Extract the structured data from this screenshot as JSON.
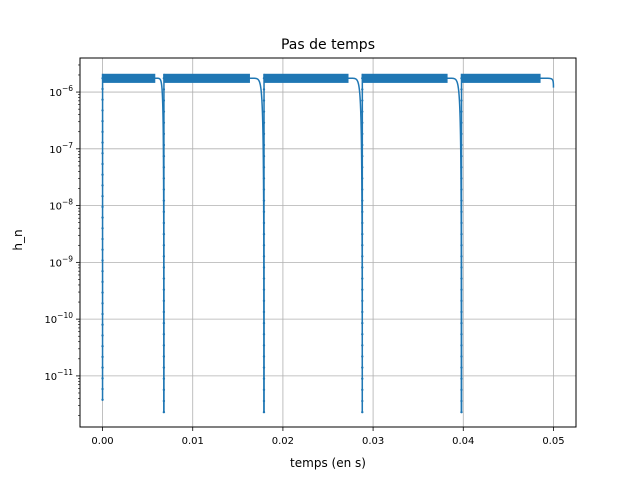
{
  "chart_data": {
    "type": "line",
    "title": "Pas de temps",
    "xlabel": "temps (en s)",
    "ylabel": "h_n",
    "yscale": "log",
    "grid": true,
    "color": "#1f77b4",
    "xlim": [
      -0.0025,
      0.0525
    ],
    "ylim_log10": [
      -11.9,
      -5.4
    ],
    "xticks": [
      {
        "value": 0.0,
        "label": "0.00"
      },
      {
        "value": 0.01,
        "label": "0.01"
      },
      {
        "value": 0.02,
        "label": "0.02"
      },
      {
        "value": 0.03,
        "label": "0.03"
      },
      {
        "value": 0.04,
        "label": "0.04"
      },
      {
        "value": 0.05,
        "label": "0.05"
      }
    ],
    "yticks": [
      {
        "exp": -6,
        "base": "10",
        "sup": "−6"
      },
      {
        "exp": -7,
        "base": "10",
        "sup": "−7"
      },
      {
        "exp": -8,
        "base": "10",
        "sup": "−8"
      },
      {
        "exp": -9,
        "base": "10",
        "sup": "−9"
      },
      {
        "exp": -10,
        "base": "10",
        "sup": "−10"
      },
      {
        "exp": -11,
        "base": "10",
        "sup": "−11"
      }
    ],
    "series": [
      {
        "segments": [
          {
            "t_start": 0.0,
            "t_end": 0.0068,
            "h_min": 3.8e-12,
            "h_plateau": 1.75e-06
          },
          {
            "t_start": 0.0068,
            "t_end": 0.0179,
            "h_min": 2.3e-12,
            "h_plateau": 1.75e-06
          },
          {
            "t_start": 0.0179,
            "t_end": 0.0288,
            "h_min": 2.3e-12,
            "h_plateau": 1.75e-06
          },
          {
            "t_start": 0.0288,
            "t_end": 0.0398,
            "h_min": 2.3e-12,
            "h_plateau": 1.75e-06
          },
          {
            "t_start": 0.0398,
            "t_end": 0.05,
            "h_min": 2.3e-12,
            "h_plateau": 1.75e-06
          }
        ],
        "h_peak": 2.1e-06
      }
    ]
  }
}
